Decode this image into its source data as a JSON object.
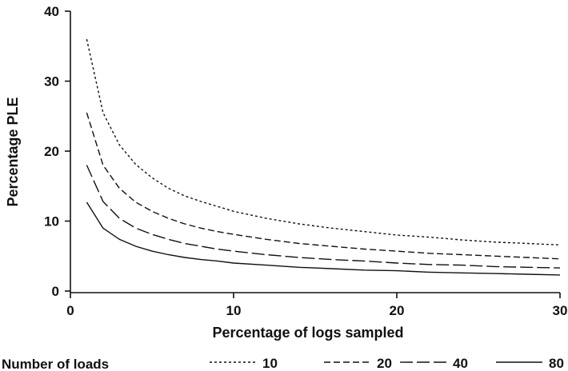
{
  "chart_data": {
    "type": "line",
    "xlabel": "Percentage of logs sampled",
    "ylabel": "Percentage PLE",
    "xlim": [
      0,
      30
    ],
    "ylim": [
      0,
      40
    ],
    "x_ticks": [
      0,
      10,
      20,
      30
    ],
    "y_ticks": [
      0,
      10,
      20,
      30,
      40
    ],
    "x": [
      1,
      2,
      3,
      4,
      5,
      6,
      7,
      8,
      9,
      10,
      12,
      14,
      16,
      18,
      20,
      22,
      24,
      26,
      28,
      30
    ],
    "grid": false,
    "legend": {
      "title": "Number of loads",
      "position": "bottom"
    },
    "series": [
      {
        "name": "10",
        "dash": "3,3",
        "values": [
          36.0,
          25.5,
          20.9,
          18.1,
          16.2,
          14.7,
          13.6,
          12.8,
          12.1,
          11.4,
          10.4,
          9.6,
          9.0,
          8.5,
          8.0,
          7.7,
          7.3,
          7.0,
          6.8,
          6.6
        ]
      },
      {
        "name": "20",
        "dash": "8,4",
        "values": [
          25.5,
          18.0,
          14.7,
          12.7,
          11.4,
          10.4,
          9.6,
          9.0,
          8.5,
          8.1,
          7.4,
          6.8,
          6.4,
          6.0,
          5.7,
          5.4,
          5.2,
          5.0,
          4.8,
          4.6
        ]
      },
      {
        "name": "40",
        "dash": "16,5",
        "values": [
          18.0,
          12.8,
          10.4,
          9.0,
          8.1,
          7.4,
          6.8,
          6.4,
          6.0,
          5.7,
          5.2,
          4.8,
          4.5,
          4.3,
          4.0,
          3.8,
          3.7,
          3.5,
          3.4,
          3.3
        ]
      },
      {
        "name": "80",
        "dash": "none",
        "values": [
          12.7,
          9.0,
          7.4,
          6.4,
          5.7,
          5.2,
          4.8,
          4.5,
          4.3,
          4.0,
          3.7,
          3.4,
          3.2,
          3.0,
          2.9,
          2.7,
          2.6,
          2.5,
          2.4,
          2.3
        ]
      }
    ]
  }
}
